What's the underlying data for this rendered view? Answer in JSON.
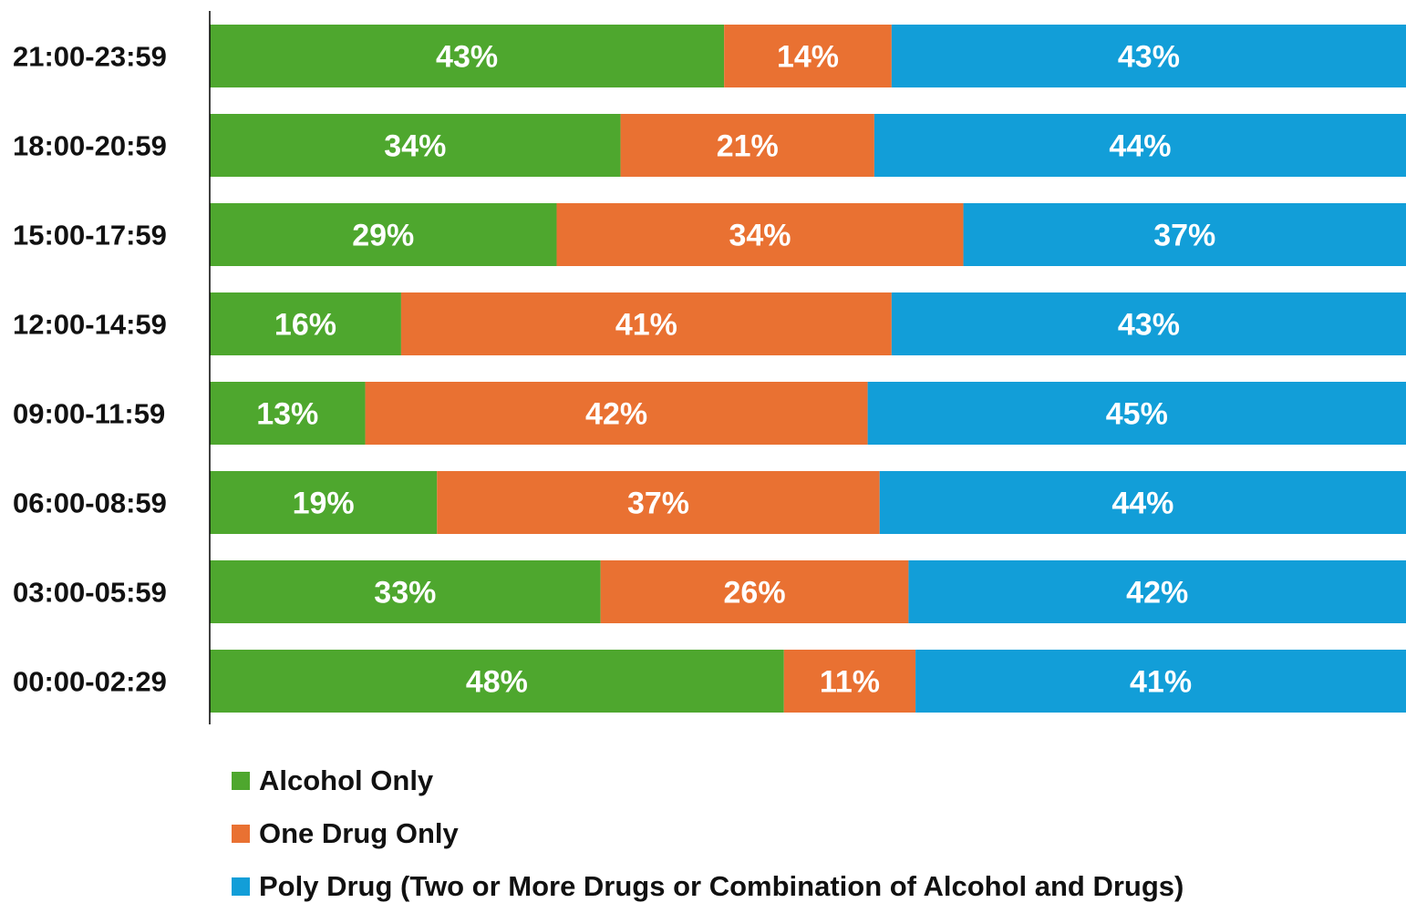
{
  "chart_data": {
    "type": "bar",
    "orientation": "horizontal",
    "stacked": true,
    "categories": [
      "21:00-23:59",
      "18:00-20:59",
      "15:00-17:59",
      "12:00-14:59",
      "09:00-11:59",
      "06:00-08:59",
      "03:00-05:59",
      "00:00-02:29"
    ],
    "series": [
      {
        "name": "Alcohol Only",
        "color": "#4EA72E",
        "values": [
          43,
          34,
          29,
          16,
          13,
          19,
          33,
          48
        ],
        "labels": [
          "43%",
          "34%",
          "29%",
          "16%",
          "13%",
          "19%",
          "33%",
          "48%"
        ]
      },
      {
        "name": "One Drug Only",
        "color": "#E97132",
        "values": [
          14,
          21,
          34,
          41,
          42,
          37,
          26,
          11
        ],
        "labels": [
          "14%",
          "21%",
          "34%",
          "41%",
          "42%",
          "37%",
          "26%",
          "11%"
        ]
      },
      {
        "name": "Poly Drug (Two or More Drugs or Combination of Alcohol and Drugs)",
        "color": "#129ED8",
        "values": [
          43,
          44,
          37,
          43,
          45,
          44,
          42,
          41
        ],
        "labels": [
          "43%",
          "44%",
          "37%",
          "43%",
          "45%",
          "44%",
          "42%",
          "41%"
        ]
      }
    ],
    "xlim": [
      0,
      100
    ],
    "grid": false,
    "legend_position": "bottom-left"
  }
}
